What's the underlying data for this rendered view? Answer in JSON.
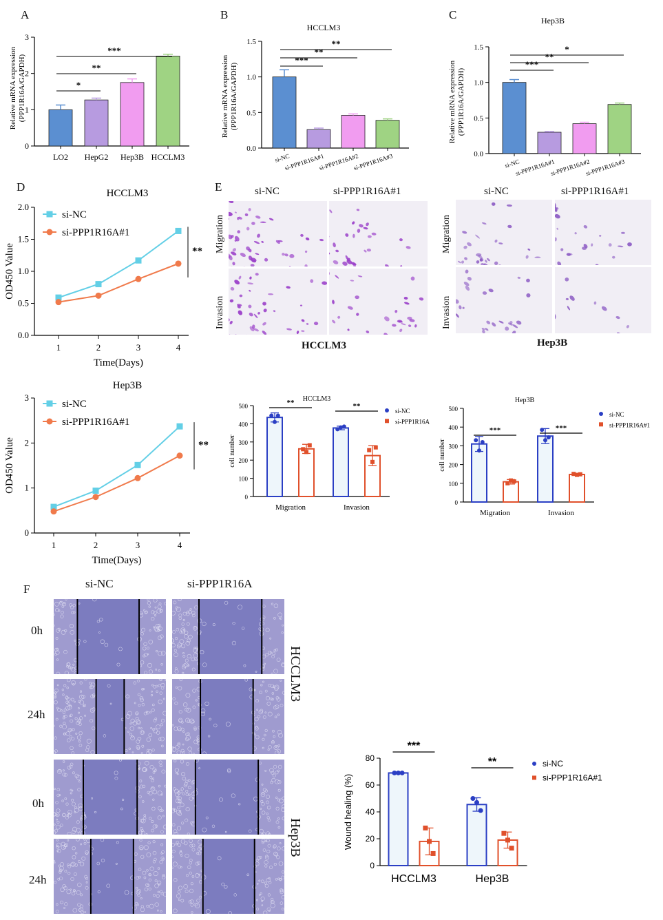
{
  "panel_labels": {
    "A": "A",
    "B": "B",
    "C": "C",
    "D": "D",
    "E": "E",
    "F": "F"
  },
  "chart_data": [
    {
      "id": "A",
      "type": "bar",
      "title": "",
      "ylabel": "Relative mRNA expression\n(PPP1R16A/GAPDH)",
      "categories": [
        "LO2",
        "HepG2",
        "Hep3B",
        "HCCLM3"
      ],
      "values": [
        1.0,
        1.27,
        1.75,
        2.48
      ],
      "errors": [
        0.13,
        0.05,
        0.1,
        0.05
      ],
      "colors": [
        "#5b8fd1",
        "#b79be0",
        "#f19cf0",
        "#9fd383"
      ],
      "ylim": [
        0,
        3
      ],
      "yticks": [
        0,
        1,
        2,
        3
      ],
      "significance": [
        {
          "from": 0,
          "to": 1,
          "label": "*"
        },
        {
          "from": 0,
          "to": 2,
          "label": "**"
        },
        {
          "from": 0,
          "to": 3,
          "label": "***"
        }
      ]
    },
    {
      "id": "B",
      "type": "bar",
      "title": "HCCLM3",
      "ylabel": "Relative mRNA expression\n(PPP1R16A/GAPDH)",
      "categories": [
        "si-NC",
        "si-PPP1R16A#1",
        "si-PPP1R16A#2",
        "si-PPP1R16A#3"
      ],
      "values": [
        1.0,
        0.26,
        0.46,
        0.39
      ],
      "errors": [
        0.1,
        0.02,
        0.02,
        0.02
      ],
      "colors": [
        "#5b8fd1",
        "#b79be0",
        "#f19cf0",
        "#9fd383"
      ],
      "ylim": [
        0,
        1.5
      ],
      "yticks": [
        0.0,
        0.5,
        1.0,
        1.5
      ],
      "significance": [
        {
          "from": 0,
          "to": 1,
          "label": "***"
        },
        {
          "from": 0,
          "to": 2,
          "label": "**"
        },
        {
          "from": 0,
          "to": 3,
          "label": "**"
        }
      ]
    },
    {
      "id": "C",
      "type": "bar",
      "title": "Hep3B",
      "ylabel": "Relative mRNA expression\n(PPP1R16A/GAPDH)",
      "categories": [
        "si-NC",
        "si-PPP1R16A#1",
        "si-PPP1R16A#2",
        "si-PPP1R16A#3"
      ],
      "values": [
        1.0,
        0.3,
        0.42,
        0.69
      ],
      "errors": [
        0.04,
        0.01,
        0.02,
        0.02
      ],
      "colors": [
        "#5b8fd1",
        "#b79be0",
        "#f19cf0",
        "#9fd383"
      ],
      "ylim": [
        0,
        1.5
      ],
      "yticks": [
        0.0,
        0.5,
        1.0,
        1.5
      ],
      "significance": [
        {
          "from": 0,
          "to": 1,
          "label": "***"
        },
        {
          "from": 0,
          "to": 2,
          "label": "**"
        },
        {
          "from": 0,
          "to": 3,
          "label": "*"
        }
      ]
    },
    {
      "id": "D1",
      "type": "line",
      "title": "HCCLM3",
      "xlabel": "Time(Days)",
      "ylabel": "OD450 Value",
      "x": [
        1,
        2,
        3,
        4
      ],
      "series": [
        {
          "name": "si-NC",
          "values": [
            0.59,
            0.8,
            1.17,
            1.63
          ],
          "color": "#63cfe6",
          "marker": "square"
        },
        {
          "name": "si-PPP1R16A#1",
          "values": [
            0.52,
            0.62,
            0.88,
            1.12
          ],
          "color": "#f07a4b",
          "marker": "circle"
        }
      ],
      "ylim": [
        0,
        2.0
      ],
      "yticks": [
        0.0,
        0.5,
        1.0,
        1.5,
        2.0
      ],
      "xticks": [
        1,
        2,
        3,
        4
      ],
      "significance": "**"
    },
    {
      "id": "D2",
      "type": "line",
      "title": "Hep3B",
      "xlabel": "Time(Days)",
      "ylabel": "OD450 Value",
      "x": [
        1,
        2,
        3,
        4
      ],
      "series": [
        {
          "name": "si-NC",
          "values": [
            0.58,
            0.94,
            1.51,
            2.37
          ],
          "color": "#63cfe6",
          "marker": "square"
        },
        {
          "name": "si-PPP1R16A#1",
          "values": [
            0.48,
            0.8,
            1.22,
            1.72
          ],
          "color": "#f07a4b",
          "marker": "circle"
        }
      ],
      "ylim": [
        0,
        3
      ],
      "yticks": [
        0,
        1,
        2,
        3
      ],
      "xticks": [
        1,
        2,
        3,
        4
      ],
      "significance": "**"
    },
    {
      "id": "E1",
      "type": "bar",
      "title": "HCCLM3",
      "ylabel": "cell number",
      "categories": [
        "Migration",
        "Invasion"
      ],
      "series": [
        {
          "name": "si-NC",
          "values": [
            435,
            377
          ],
          "errors": [
            25,
            10
          ],
          "points": [
            [
              445,
              410,
              445
            ],
            [
              370,
              380,
              385
            ]
          ],
          "color": "#2b3fc4"
        },
        {
          "name": "si-PPP1R16A",
          "values": [
            262,
            225
          ],
          "errors": [
            25,
            55
          ],
          "points": [
            [
              260,
              245,
              282
            ],
            [
              255,
              190,
              270
            ]
          ],
          "color": "#e0502b"
        }
      ],
      "ylim": [
        0,
        500
      ],
      "yticks": [
        0,
        100,
        200,
        300,
        400,
        500
      ],
      "significance": [
        "**",
        "**"
      ]
    },
    {
      "id": "E2",
      "type": "bar",
      "title": "Hep3B",
      "ylabel": "cell number",
      "categories": [
        "Migration",
        "Invasion"
      ],
      "series": [
        {
          "name": "si-NC",
          "values": [
            310,
            352
          ],
          "errors": [
            40,
            40
          ],
          "points": [
            [
              330,
              275,
              320
            ],
            [
              385,
              330,
              345
            ]
          ],
          "color": "#2b3fc4"
        },
        {
          "name": "si-PPP1R16A#1",
          "values": [
            108,
            147
          ],
          "errors": [
            12,
            5
          ],
          "points": [
            [
              100,
              115,
              110
            ],
            [
              150,
              145,
              148
            ]
          ],
          "color": "#e0502b"
        }
      ],
      "ylim": [
        0,
        500
      ],
      "yticks": [
        0,
        100,
        200,
        300,
        400,
        500
      ],
      "significance": [
        "***",
        "***"
      ]
    },
    {
      "id": "F",
      "type": "bar",
      "title": "",
      "ylabel": "Wound healing (%)",
      "categories": [
        "HCCLM3",
        "Hep3B"
      ],
      "series": [
        {
          "name": "si-NC",
          "values": [
            69,
            45.5
          ],
          "errors": [
            0.6,
            5
          ],
          "points": [
            [
              69,
              69,
              69
            ],
            [
              50,
              47,
              41
            ]
          ],
          "color": "#2b3fc4"
        },
        {
          "name": "si-PPP1R16A#1",
          "values": [
            18,
            19
          ],
          "errors": [
            10,
            6
          ],
          "points": [
            [
              28,
              18,
              9
            ],
            [
              24,
              19,
              13
            ]
          ],
          "color": "#e0502b"
        }
      ],
      "ylim": [
        0,
        80
      ],
      "yticks": [
        0,
        20,
        40,
        60,
        80
      ],
      "significance": [
        "***",
        "**"
      ]
    }
  ],
  "panelE": {
    "col_sinc": "si-NC",
    "col_si": "si-PPP1R16A#1",
    "row_migration": "Migration",
    "row_invasion": "Invasion",
    "cap_hcclm3": "HCCLM3",
    "cap_hep3b": "Hep3B"
  },
  "panelF": {
    "col_sinc": "si-NC",
    "col_si": "si-PPP1R16A",
    "rows": [
      "0h",
      "24h",
      "0h",
      "24h"
    ],
    "side_hcclm3": "HCCLM3",
    "side_hep3b": "Hep3B"
  },
  "colors": {
    "migration_stain": "#a447c9",
    "scratch": "#7c7cbf"
  }
}
